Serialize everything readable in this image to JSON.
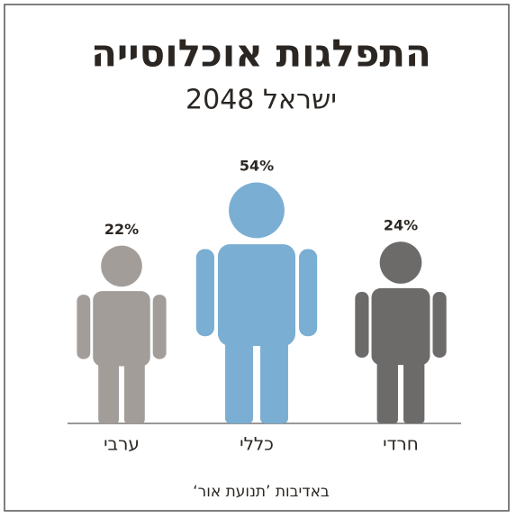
{
  "chart_data": {
    "type": "pictogram",
    "title": "התפלגות אוכלוסייה",
    "subtitle": "ישראל 2048",
    "categories": [
      "ערבי",
      "כללי",
      "חרדי"
    ],
    "values": [
      22,
      54,
      24
    ],
    "value_labels": [
      "22%",
      "54%",
      "24%"
    ],
    "colors": [
      "#a39d9a",
      "#7aaed3",
      "#6d6b6a"
    ],
    "source": "באדיבות ’תנועת אור‘"
  }
}
